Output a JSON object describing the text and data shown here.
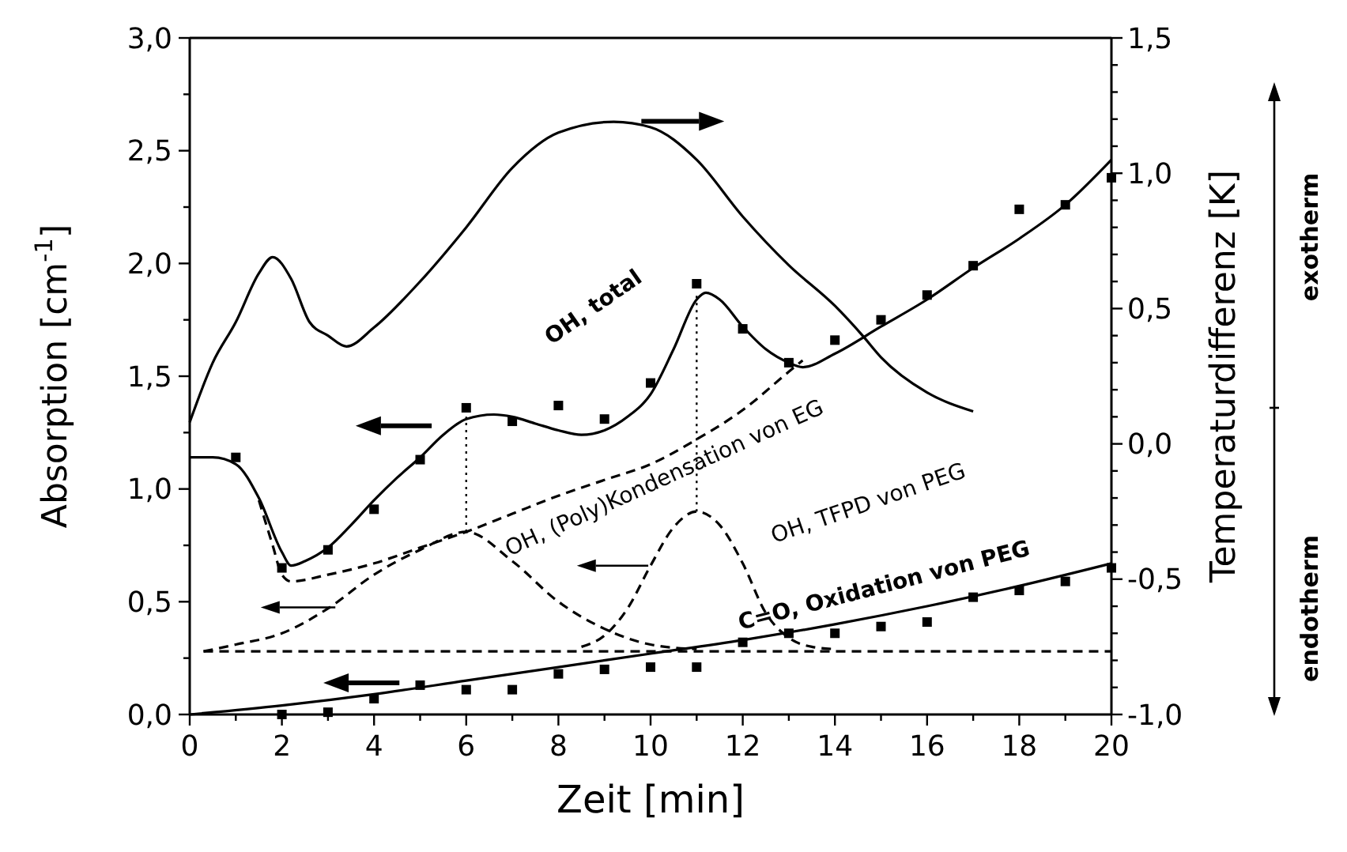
{
  "chart_data": {
    "type": "line",
    "xlabel": "Zeit [min]",
    "ylabel": "Absorption [cm$^{-1}$]",
    "y2label": "Temperaturdifferenz [K]",
    "xlim": [
      0,
      20
    ],
    "xticks": [
      0,
      {
        "value": 1,
        "label": null
      },
      2,
      {
        "value": 3,
        "label": null
      },
      4,
      {
        "value": 5,
        "label": null
      },
      6,
      {
        "value": 7,
        "label": null
      },
      8,
      {
        "value": 9,
        "label": null
      },
      10,
      {
        "value": 11,
        "label": null
      },
      12,
      {
        "value": 13,
        "label": null
      },
      14,
      {
        "value": 15,
        "label": null
      },
      16,
      {
        "value": 17,
        "label": null
      },
      18,
      {
        "value": 19,
        "label": null
      },
      20
    ],
    "ylim": [
      0,
      3
    ],
    "yticks": [
      {
        "value": 0,
        "label": "0,0"
      },
      {
        "value": 0.25,
        "label": null
      },
      {
        "value": 0.5,
        "label": "0,5"
      },
      {
        "value": 0.75,
        "label": null
      },
      {
        "value": 1,
        "label": "1,0"
      },
      {
        "value": 1.25,
        "label": null
      },
      {
        "value": 1.5,
        "label": "1,5"
      },
      {
        "value": 1.75,
        "label": null
      },
      {
        "value": 2,
        "label": "2,0"
      },
      {
        "value": 2.25,
        "label": null
      },
      {
        "value": 2.5,
        "label": "2,5"
      },
      {
        "value": 2.75,
        "label": null
      },
      {
        "value": 3,
        "label": "3,0"
      }
    ],
    "y2lim": [
      -1,
      1.5
    ],
    "y2ticks": [
      {
        "value": -1,
        "label": "-1,0"
      },
      {
        "value": -0.9,
        "label": null
      },
      {
        "value": -0.8,
        "label": null
      },
      {
        "value": -0.7,
        "label": null
      },
      {
        "value": -0.6,
        "label": null
      },
      {
        "value": -0.5,
        "label": "-0,5"
      },
      {
        "value": -0.4,
        "label": null
      },
      {
        "value": -0.3,
        "label": null
      },
      {
        "value": -0.2,
        "label": null
      },
      {
        "value": -0.1,
        "label": null
      },
      {
        "value": 0,
        "label": "0,0"
      },
      {
        "value": 0.1,
        "label": null
      },
      {
        "value": 0.2,
        "label": null
      },
      {
        "value": 0.3,
        "label": null
      },
      {
        "value": 0.4,
        "label": null
      },
      {
        "value": 0.5,
        "label": "0,5"
      },
      {
        "value": 0.6,
        "label": null
      },
      {
        "value": 0.7,
        "label": null
      },
      {
        "value": 0.8,
        "label": null
      },
      {
        "value": 0.9,
        "label": null
      },
      {
        "value": 1,
        "label": "1,0"
      },
      {
        "value": 1.1,
        "label": null
      },
      {
        "value": 1.2,
        "label": null
      },
      {
        "value": 1.3,
        "label": null
      },
      {
        "value": 1.4,
        "label": null
      },
      {
        "value": 1.5,
        "label": "1,5"
      }
    ],
    "series": [
      {
        "type": "scatter",
        "marker": "square",
        "color": "#000000",
        "x": [
          1,
          2,
          3,
          4,
          5,
          6,
          7,
          8,
          9,
          10,
          11,
          12,
          13,
          14,
          15,
          16,
          17,
          18,
          19,
          20
        ],
        "values": [
          1.14,
          0.65,
          0.73,
          0.91,
          1.13,
          1.36,
          1.3,
          1.37,
          1.31,
          1.47,
          1.91,
          1.71,
          1.56,
          1.66,
          1.75,
          1.86,
          1.99,
          2.24,
          2.26,
          2.38
        ]
      },
      {
        "type": "line",
        "line_style": "solid",
        "color": "#000000",
        "x": [
          0,
          0.5,
          1,
          1.5,
          2,
          2.2,
          2.5,
          3,
          3.5,
          4,
          4.5,
          5,
          5.5,
          6,
          6.6,
          7,
          7.5,
          8,
          8.5,
          9,
          9.5,
          10,
          10.5,
          11,
          11.2,
          11.5,
          12,
          12.5,
          13,
          13.3,
          14,
          15,
          16,
          17,
          18,
          19,
          20
        ],
        "values": [
          1.14,
          1.14,
          1.11,
          0.96,
          0.72,
          0.66,
          0.68,
          0.74,
          0.84,
          0.95,
          1.05,
          1.14,
          1.24,
          1.31,
          1.33,
          1.32,
          1.29,
          1.26,
          1.24,
          1.26,
          1.32,
          1.42,
          1.62,
          1.84,
          1.87,
          1.84,
          1.72,
          1.62,
          1.56,
          1.54,
          1.6,
          1.72,
          1.84,
          1.98,
          2.11,
          2.26,
          2.46
        ]
      },
      {
        "type": "line",
        "line_style": "solid",
        "axis": "y2",
        "color": "#000000",
        "x": [
          0,
          0.5,
          1,
          1.5,
          1.8,
          2.2,
          2.6,
          3,
          3.4,
          4,
          5,
          6,
          7,
          8,
          9.2,
          10,
          11,
          12,
          13,
          14,
          14.6,
          15,
          16,
          17
        ],
        "values": [
          0.08,
          0.3,
          0.45,
          0.63,
          0.69,
          0.61,
          0.45,
          0.4,
          0.36,
          0.43,
          0.6,
          0.8,
          1.02,
          1.15,
          1.19,
          1.17,
          1.05,
          0.84,
          0.66,
          0.51,
          0.4,
          0.32,
          0.19,
          0.12
        ]
      },
      {
        "type": "line",
        "line_style": "dashed",
        "color": "#000000",
        "x": [
          1.5,
          1.8,
          2,
          2.2,
          3,
          4,
          5,
          6,
          7,
          8,
          9,
          10,
          11,
          12,
          13,
          13.3
        ],
        "values": [
          0.95,
          0.75,
          0.62,
          0.59,
          0.62,
          0.67,
          0.74,
          0.81,
          0.89,
          0.97,
          1.04,
          1.11,
          1.22,
          1.35,
          1.52,
          1.57
        ]
      },
      {
        "type": "line",
        "line_style": "dashed",
        "color": "#000000",
        "x": [
          0.3,
          20
        ],
        "values": [
          0.28,
          0.28
        ]
      },
      {
        "type": "line",
        "line_style": "dashed",
        "color": "#000000",
        "x": [
          0.3,
          1,
          2,
          3,
          4,
          5,
          6,
          7,
          8,
          9,
          10,
          11
        ],
        "values": [
          0.28,
          0.31,
          0.36,
          0.47,
          0.62,
          0.73,
          0.81,
          0.68,
          0.5,
          0.38,
          0.31,
          0.29
        ]
      },
      {
        "type": "line",
        "line_style": "dashed",
        "color": "#000000",
        "x": [
          8.5,
          9,
          9.5,
          10,
          10.5,
          11,
          11.5,
          12,
          12.5,
          13,
          13.5,
          14
        ],
        "values": [
          0.3,
          0.35,
          0.47,
          0.66,
          0.83,
          0.9,
          0.84,
          0.67,
          0.45,
          0.34,
          0.3,
          0.29
        ]
      },
      {
        "type": "scatter",
        "marker": "square",
        "color": "#000000",
        "x": [
          2,
          3,
          4,
          5,
          6,
          7,
          8,
          9,
          10,
          11,
          12,
          13,
          14,
          15,
          16,
          17,
          18,
          19,
          20
        ],
        "values": [
          0.0,
          0.01,
          0.07,
          0.13,
          0.11,
          0.11,
          0.18,
          0.2,
          0.21,
          0.21,
          0.32,
          0.36,
          0.36,
          0.39,
          0.41,
          0.52,
          0.55,
          0.59,
          0.65
        ]
      },
      {
        "type": "line",
        "line_style": "solid",
        "color": "#000000",
        "x": [
          0,
          2,
          4,
          6,
          8,
          10,
          12,
          14,
          16,
          18,
          20
        ],
        "values": [
          0,
          0.04,
          0.09,
          0.15,
          0.21,
          0.27,
          0.33,
          0.4,
          0.48,
          0.57,
          0.67
        ]
      },
      {
        "type": "line",
        "line_style": "dotted",
        "color": "#000000",
        "x": [
          6,
          6
        ],
        "values": [
          0.81,
          1.32
        ]
      },
      {
        "type": "line",
        "line_style": "dotted",
        "color": "#000000",
        "x": [
          11,
          11
        ],
        "values": [
          0.9,
          1.87
        ]
      }
    ],
    "annotations": [
      "OH, total",
      "OH, (Poly)Kondensation von EG",
      "OH, TFPD von PEG",
      "C=O, Oxidation von PEG",
      "exotherm",
      "endotherm"
    ]
  }
}
